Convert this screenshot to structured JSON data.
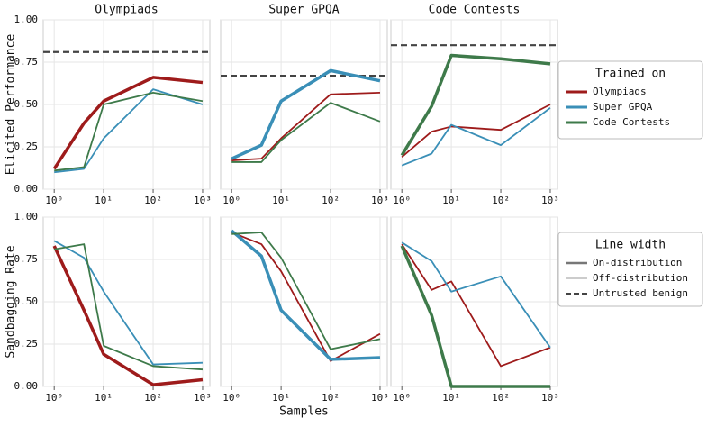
{
  "chart_data": [
    {
      "type": "line",
      "title": "Olympiads",
      "ylabel": "Elicited Performance",
      "x": [
        1,
        4,
        10,
        100,
        1000
      ],
      "log_x": true,
      "xlim": [
        0.6,
        1400
      ],
      "xticks": [
        {
          "value": 1,
          "label": "10⁰"
        },
        {
          "value": 10,
          "label": "10¹"
        },
        {
          "value": 100,
          "label": "10²"
        },
        {
          "value": 1000,
          "label": "10³"
        }
      ],
      "ylim": [
        0,
        1
      ],
      "yticks": [
        {
          "value": 0,
          "label": "0.00"
        },
        {
          "value": 0.25,
          "label": "0.25"
        },
        {
          "value": 0.5,
          "label": "0.50"
        },
        {
          "value": 0.75,
          "label": "0.75"
        },
        {
          "value": 1,
          "label": "1.00"
        }
      ],
      "grid": true,
      "benign": 0.81,
      "series": [
        {
          "color": "#9e1b1b",
          "linewidth": 3.5,
          "values": [
            0.12,
            0.39,
            0.52,
            0.66,
            0.63
          ]
        },
        {
          "color": "#3a8fb7",
          "linewidth": 1.8,
          "values": [
            0.1,
            0.12,
            0.3,
            0.59,
            0.5
          ]
        },
        {
          "color": "#3e7a4a",
          "linewidth": 1.8,
          "values": [
            0.11,
            0.13,
            0.5,
            0.57,
            0.52
          ]
        }
      ]
    },
    {
      "type": "line",
      "title": "Super GPQA",
      "x": [
        1,
        4,
        10,
        100,
        1000
      ],
      "log_x": true,
      "xlim": [
        0.6,
        1400
      ],
      "xticks": [
        {
          "value": 1,
          "label": "10⁰"
        },
        {
          "value": 10,
          "label": "10¹"
        },
        {
          "value": 100,
          "label": "10²"
        },
        {
          "value": 1000,
          "label": "10³"
        }
      ],
      "ylim": [
        0,
        1
      ],
      "yticks": [
        0,
        0.25,
        0.5,
        0.75,
        1
      ],
      "grid": true,
      "benign": 0.67,
      "series": [
        {
          "color": "#9e1b1b",
          "linewidth": 1.8,
          "values": [
            0.17,
            0.18,
            0.3,
            0.56,
            0.57
          ]
        },
        {
          "color": "#3a8fb7",
          "linewidth": 3.5,
          "values": [
            0.18,
            0.26,
            0.52,
            0.7,
            0.64
          ]
        },
        {
          "color": "#3e7a4a",
          "linewidth": 1.8,
          "values": [
            0.16,
            0.16,
            0.29,
            0.51,
            0.4
          ]
        }
      ]
    },
    {
      "type": "line",
      "title": "Code Contests",
      "x": [
        1,
        4,
        10,
        100,
        1000
      ],
      "log_x": true,
      "xlim": [
        0.6,
        1400
      ],
      "xticks": [
        {
          "value": 1,
          "label": "10⁰"
        },
        {
          "value": 10,
          "label": "10¹"
        },
        {
          "value": 100,
          "label": "10²"
        },
        {
          "value": 1000,
          "label": "10³"
        }
      ],
      "ylim": [
        0,
        1
      ],
      "yticks": [
        0,
        0.25,
        0.5,
        0.75,
        1
      ],
      "grid": true,
      "benign": 0.85,
      "series": [
        {
          "color": "#9e1b1b",
          "linewidth": 1.8,
          "values": [
            0.19,
            0.34,
            0.37,
            0.35,
            0.5
          ]
        },
        {
          "color": "#3a8fb7",
          "linewidth": 1.8,
          "values": [
            0.14,
            0.21,
            0.38,
            0.26,
            0.48
          ]
        },
        {
          "color": "#3e7a4a",
          "linewidth": 3.5,
          "values": [
            0.2,
            0.49,
            0.79,
            0.77,
            0.74
          ]
        }
      ]
    },
    {
      "type": "line",
      "ylabel": "Sandbagging Rate",
      "x": [
        1,
        4,
        10,
        100,
        1000
      ],
      "log_x": true,
      "xlim": [
        0.6,
        1400
      ],
      "xticks": [
        {
          "value": 1,
          "label": "10⁰"
        },
        {
          "value": 10,
          "label": "10¹"
        },
        {
          "value": 100,
          "label": "10²"
        },
        {
          "value": 1000,
          "label": "10³"
        }
      ],
      "ylim": [
        0,
        1
      ],
      "yticks": [
        {
          "value": 0,
          "label": "0.00"
        },
        {
          "value": 0.25,
          "label": "0.25"
        },
        {
          "value": 0.5,
          "label": "0.50"
        },
        {
          "value": 0.75,
          "label": "0.75"
        },
        {
          "value": 1,
          "label": "1.00"
        }
      ],
      "grid": true,
      "series": [
        {
          "color": "#9e1b1b",
          "linewidth": 3.5,
          "values": [
            0.83,
            0.45,
            0.19,
            0.01,
            0.04
          ]
        },
        {
          "color": "#3a8fb7",
          "linewidth": 1.8,
          "values": [
            0.86,
            0.76,
            0.56,
            0.13,
            0.14
          ]
        },
        {
          "color": "#3e7a4a",
          "linewidth": 1.8,
          "values": [
            0.81,
            0.84,
            0.24,
            0.12,
            0.1
          ]
        }
      ]
    },
    {
      "type": "line",
      "xlabel": "Samples",
      "x": [
        1,
        4,
        10,
        100,
        1000
      ],
      "log_x": true,
      "xlim": [
        0.6,
        1400
      ],
      "xticks": [
        {
          "value": 1,
          "label": "10⁰"
        },
        {
          "value": 10,
          "label": "10¹"
        },
        {
          "value": 100,
          "label": "10²"
        },
        {
          "value": 1000,
          "label": "10³"
        }
      ],
      "ylim": [
        0,
        1
      ],
      "yticks": [
        0,
        0.25,
        0.5,
        0.75,
        1
      ],
      "grid": true,
      "series": [
        {
          "color": "#9e1b1b",
          "linewidth": 1.8,
          "values": [
            0.91,
            0.84,
            0.68,
            0.15,
            0.31
          ]
        },
        {
          "color": "#3a8fb7",
          "linewidth": 3.5,
          "values": [
            0.92,
            0.77,
            0.45,
            0.16,
            0.17
          ]
        },
        {
          "color": "#3e7a4a",
          "linewidth": 1.8,
          "values": [
            0.9,
            0.91,
            0.76,
            0.22,
            0.28
          ]
        }
      ]
    },
    {
      "type": "line",
      "x": [
        1,
        4,
        10,
        100,
        1000
      ],
      "log_x": true,
      "xlim": [
        0.6,
        1400
      ],
      "xticks": [
        {
          "value": 1,
          "label": "10⁰"
        },
        {
          "value": 10,
          "label": "10¹"
        },
        {
          "value": 100,
          "label": "10²"
        },
        {
          "value": 1000,
          "label": "10³"
        }
      ],
      "ylim": [
        0,
        1
      ],
      "yticks": [
        0,
        0.25,
        0.5,
        0.75,
        1
      ],
      "grid": true,
      "series": [
        {
          "color": "#9e1b1b",
          "linewidth": 1.8,
          "values": [
            0.84,
            0.57,
            0.62,
            0.12,
            0.23
          ]
        },
        {
          "color": "#3a8fb7",
          "linewidth": 1.8,
          "values": [
            0.85,
            0.74,
            0.56,
            0.65,
            0.23
          ]
        },
        {
          "color": "#3e7a4a",
          "linewidth": 3.5,
          "values": [
            0.83,
            0.42,
            0.0,
            0.0,
            0.0
          ]
        }
      ]
    }
  ],
  "legend_trained": {
    "title": "Trained on",
    "entries": [
      {
        "name": "Olympiads",
        "color": "#9e1b1b"
      },
      {
        "name": "Super GPQA",
        "color": "#3a8fb7"
      },
      {
        "name": "Code Contests",
        "color": "#3e7a4a"
      }
    ]
  },
  "legend_width": {
    "title": "Line width",
    "entries": [
      {
        "name": "On-distribution",
        "color": "#777777",
        "linewidth": 2.5
      },
      {
        "name": "Off-distribution",
        "color": "#999999",
        "linewidth": 1
      },
      {
        "name": "Untrusted benign",
        "color": "#444444",
        "linewidth": 2,
        "dashed": true
      }
    ]
  }
}
